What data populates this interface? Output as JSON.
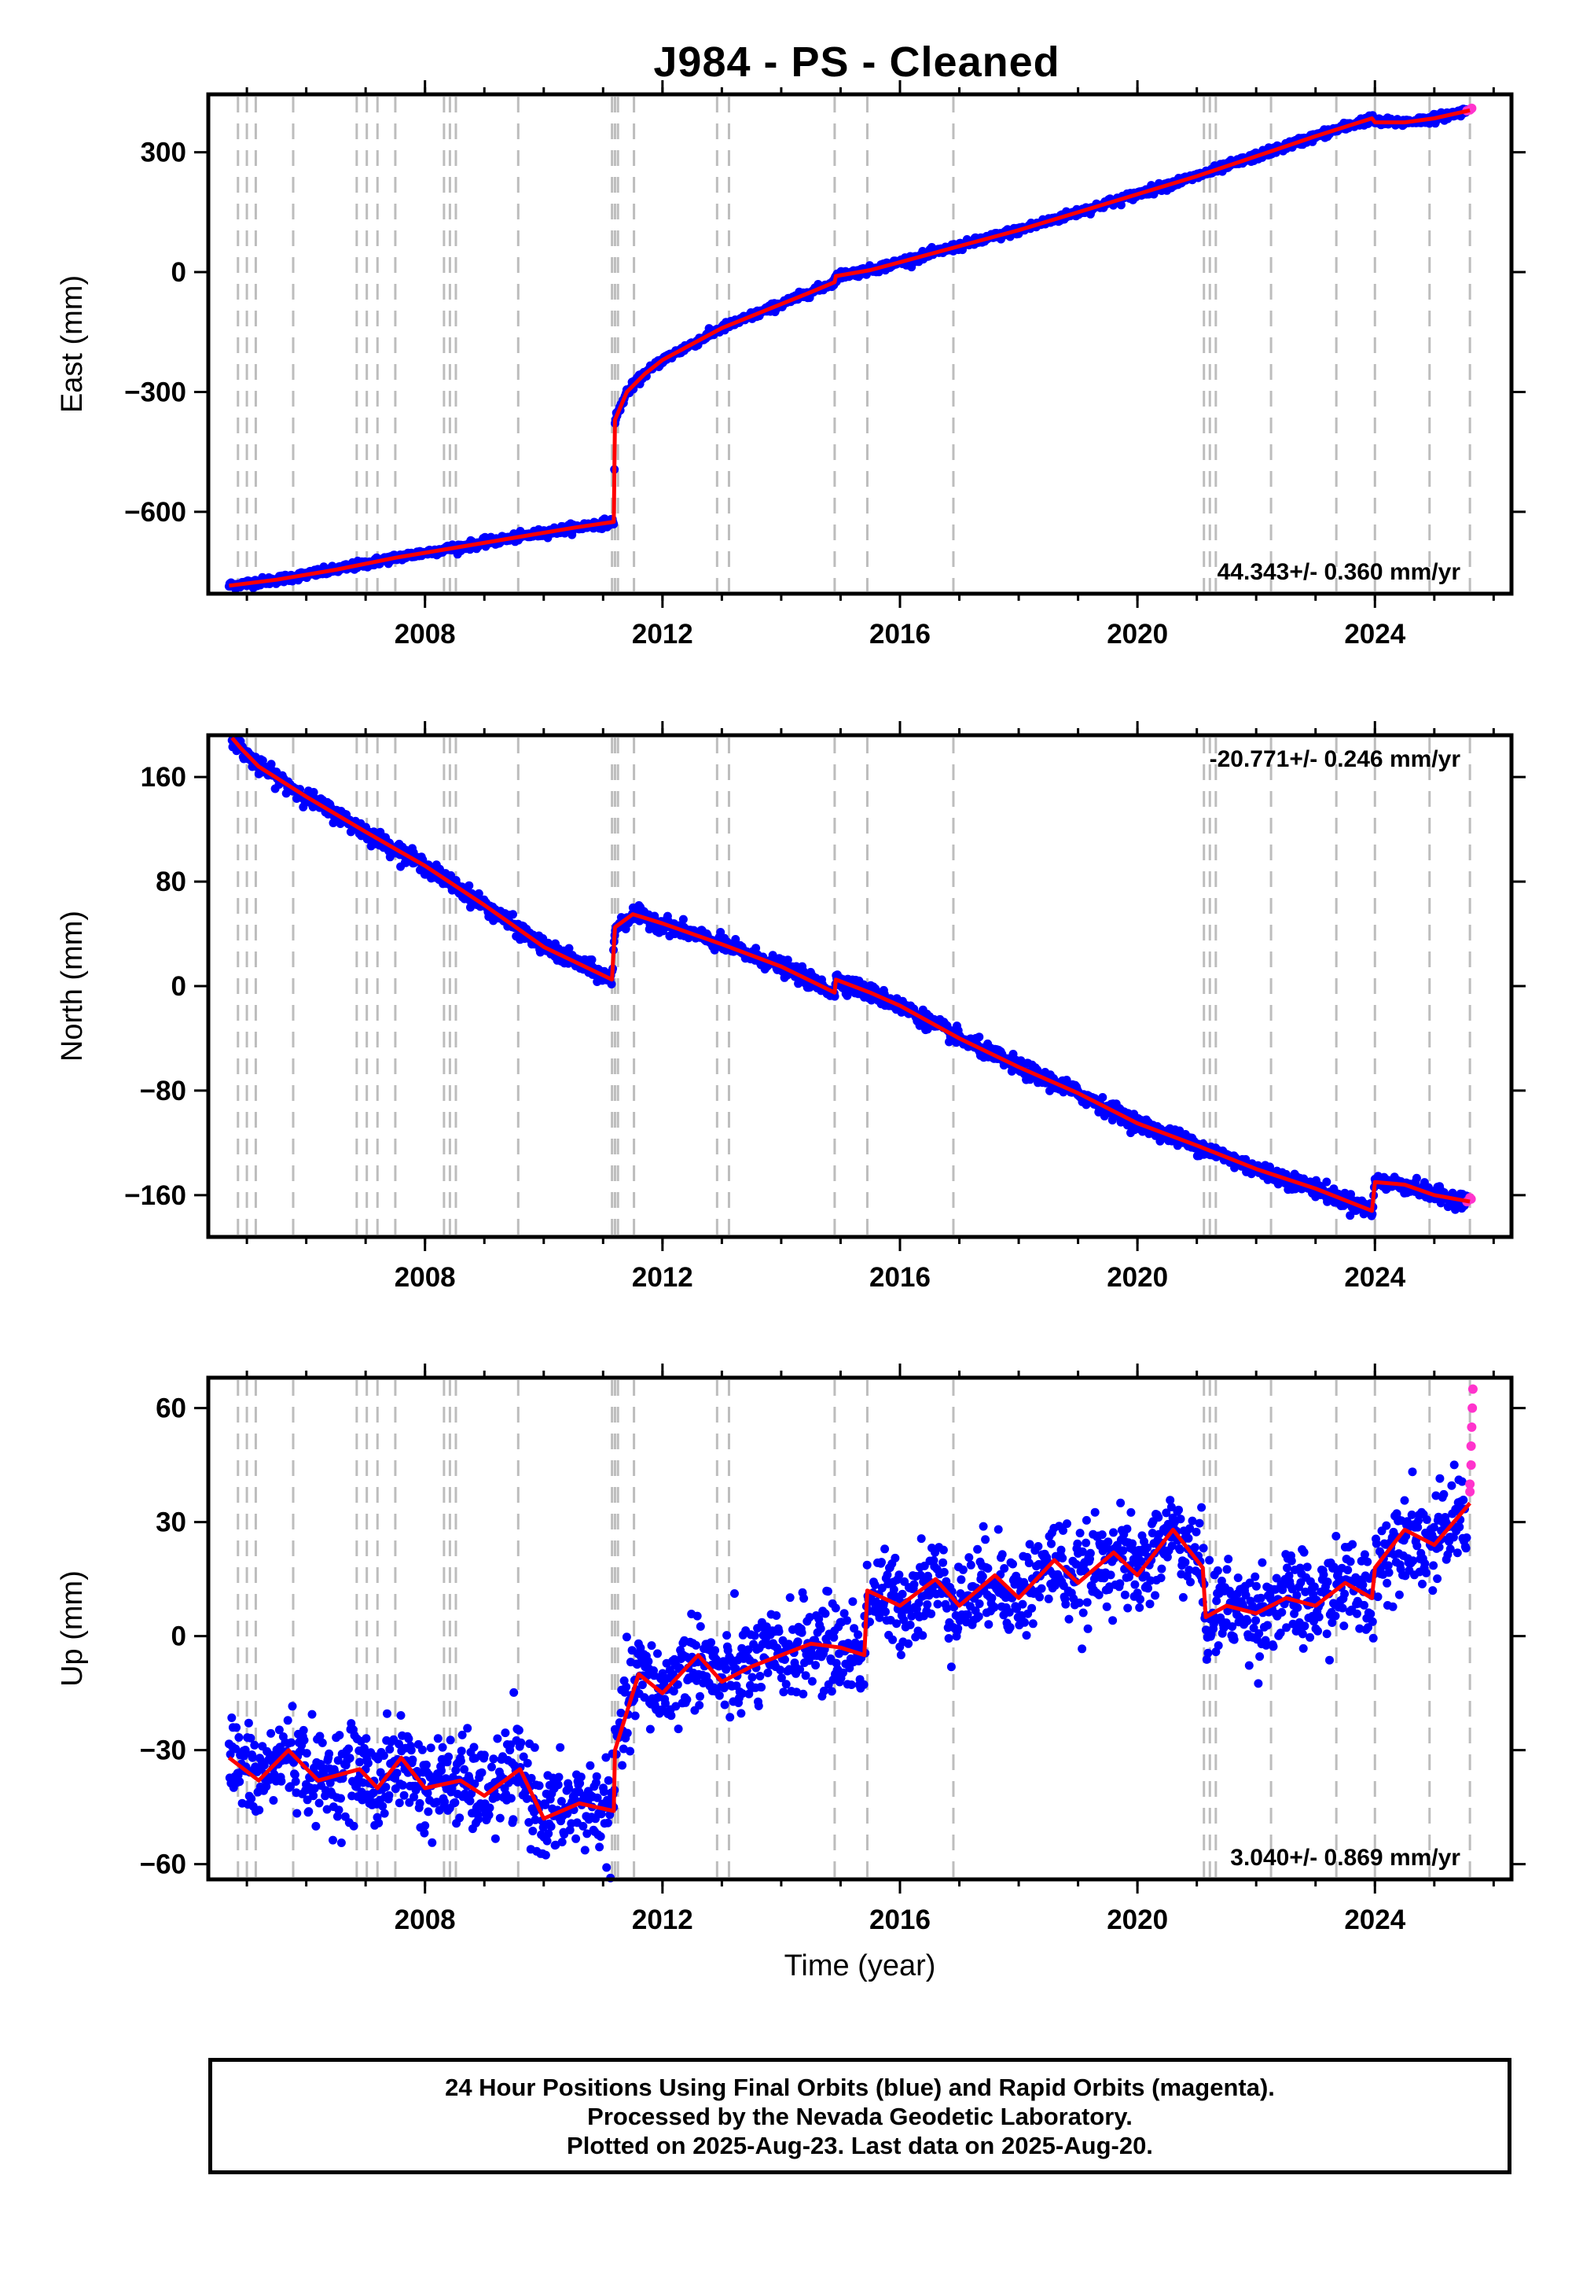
{
  "title": "J984  - PS - Cleaned",
  "colors": {
    "final": "#0000ff",
    "rapid": "#ff33cc",
    "model": "#ff0000",
    "events": "#bdbdbd"
  },
  "footer": {
    "line1": "24 Hour Positions Using Final Orbits (blue) and Rapid Orbits (magenta).",
    "line2": "Processed by the Nevada Geodetic Laboratory.",
    "line3": "Plotted on 2025-Aug-23. Last data on 2025-Aug-20."
  },
  "events": [
    2004.85,
    2005.0,
    2005.15,
    2005.78,
    2006.85,
    2007.02,
    2007.2,
    2007.5,
    2008.32,
    2008.42,
    2008.52,
    2009.57,
    2011.15,
    2011.2,
    2011.25,
    2011.52,
    2012.92,
    2013.12,
    2014.9,
    2015.45,
    2016.9,
    2021.12,
    2021.22,
    2021.32,
    2022.25,
    2023.35,
    2024.0,
    2024.92,
    2025.6
  ],
  "chart_data": [
    {
      "type": "scatter",
      "ylabel": "East (mm)",
      "xlim": [
        2004.35,
        2026.3
      ],
      "ylim": [
        -805,
        445
      ],
      "yticks": [
        -600,
        -300,
        0,
        300
      ],
      "ytick_labels": [
        "−600",
        "−300",
        "0",
        "300"
      ],
      "xticks": [
        2008,
        2012,
        2016,
        2020,
        2024
      ],
      "xtick_labels": [
        "2008",
        "2012",
        "2016",
        "2020",
        "2024"
      ],
      "rate_label": "44.343+/- 0.360 mm/yr",
      "rate_position": "bottom-right",
      "model": [
        [
          2004.7,
          -785
        ],
        [
          2005.5,
          -770
        ],
        [
          2006.5,
          -745
        ],
        [
          2007.5,
          -715
        ],
        [
          2008.5,
          -690
        ],
        [
          2009.5,
          -665
        ],
        [
          2010.5,
          -640
        ],
        [
          2011.18,
          -625
        ],
        [
          2011.2,
          -370
        ],
        [
          2011.4,
          -300
        ],
        [
          2011.7,
          -255
        ],
        [
          2012.0,
          -220
        ],
        [
          2012.5,
          -180
        ],
        [
          2013.0,
          -140
        ],
        [
          2013.5,
          -110
        ],
        [
          2014.0,
          -80
        ],
        [
          2014.5,
          -50
        ],
        [
          2014.9,
          -25
        ],
        [
          2014.92,
          -10
        ],
        [
          2015.5,
          5
        ],
        [
          2016.0,
          25
        ],
        [
          2017.0,
          65
        ],
        [
          2018.0,
          105
        ],
        [
          2019.0,
          150
        ],
        [
          2020.0,
          195
        ],
        [
          2021.0,
          240
        ],
        [
          2022.0,
          290
        ],
        [
          2023.0,
          340
        ],
        [
          2023.95,
          385
        ],
        [
          2024.0,
          375
        ],
        [
          2024.5,
          375
        ],
        [
          2025.0,
          385
        ],
        [
          2025.6,
          405
        ]
      ],
      "noise": 5,
      "rapid": [
        [
          2025.55,
          404
        ],
        [
          2025.6,
          406
        ],
        [
          2025.62,
          409
        ],
        [
          2025.63,
          410
        ]
      ]
    },
    {
      "type": "scatter",
      "ylabel": "North (mm)",
      "xlim": [
        2004.35,
        2026.3
      ],
      "ylim": [
        -192,
        192
      ],
      "yticks": [
        -160,
        -80,
        0,
        80,
        160
      ],
      "ytick_labels": [
        "−160",
        "−80",
        "0",
        "80",
        "160"
      ],
      "xticks": [
        2008,
        2012,
        2016,
        2020,
        2024
      ],
      "xtick_labels": [
        "2008",
        "2012",
        "2016",
        "2020",
        "2024"
      ],
      "rate_label": "-20.771+/- 0.246 mm/yr",
      "rate_position": "top-right",
      "model": [
        [
          2004.75,
          190
        ],
        [
          2004.9,
          182
        ],
        [
          2005.2,
          168
        ],
        [
          2006.0,
          145
        ],
        [
          2007.0,
          118
        ],
        [
          2008.0,
          92
        ],
        [
          2009.0,
          62
        ],
        [
          2010.0,
          30
        ],
        [
          2011.15,
          5
        ],
        [
          2011.2,
          45
        ],
        [
          2011.5,
          55
        ],
        [
          2012.0,
          48
        ],
        [
          2013.0,
          32
        ],
        [
          2014.0,
          15
        ],
        [
          2014.9,
          -5
        ],
        [
          2014.92,
          5
        ],
        [
          2015.5,
          -5
        ],
        [
          2016.0,
          -15
        ],
        [
          2017.0,
          -40
        ],
        [
          2018.0,
          -62
        ],
        [
          2019.0,
          -82
        ],
        [
          2020.0,
          -105
        ],
        [
          2021.0,
          -122
        ],
        [
          2022.0,
          -140
        ],
        [
          2023.0,
          -155
        ],
        [
          2023.95,
          -172
        ],
        [
          2024.0,
          -150
        ],
        [
          2024.5,
          -152
        ],
        [
          2025.0,
          -160
        ],
        [
          2025.6,
          -165
        ]
      ],
      "noise": 3,
      "rapid": [
        [
          2025.55,
          -165
        ],
        [
          2025.6,
          -162
        ],
        [
          2025.62,
          -163
        ]
      ]
    },
    {
      "type": "scatter",
      "ylabel": "Up (mm)",
      "xlabel": "Time (year)",
      "xlim": [
        2004.35,
        2026.3
      ],
      "ylim": [
        -64,
        68
      ],
      "yticks": [
        -60,
        -30,
        0,
        30,
        60
      ],
      "ytick_labels": [
        "−60",
        "−30",
        "0",
        "30",
        "60"
      ],
      "xticks": [
        2008,
        2012,
        2016,
        2020,
        2024
      ],
      "xtick_labels": [
        "2008",
        "2012",
        "2016",
        "2020",
        "2024"
      ],
      "rate_label": "3.040+/- 0.869 mm/yr",
      "rate_position": "bottom-right",
      "model": [
        [
          2004.7,
          -32
        ],
        [
          2005.2,
          -38
        ],
        [
          2005.7,
          -30
        ],
        [
          2006.2,
          -38
        ],
        [
          2006.9,
          -35
        ],
        [
          2007.2,
          -40
        ],
        [
          2007.6,
          -32
        ],
        [
          2008.0,
          -40
        ],
        [
          2008.6,
          -38
        ],
        [
          2009.0,
          -42
        ],
        [
          2009.6,
          -35
        ],
        [
          2010.0,
          -48
        ],
        [
          2010.6,
          -44
        ],
        [
          2011.18,
          -46
        ],
        [
          2011.2,
          -30
        ],
        [
          2011.6,
          -10
        ],
        [
          2012.0,
          -15
        ],
        [
          2012.6,
          -5
        ],
        [
          2013.0,
          -12
        ],
        [
          2013.5,
          -8
        ],
        [
          2014.0,
          -5
        ],
        [
          2014.5,
          -2
        ],
        [
          2015.0,
          -3
        ],
        [
          2015.4,
          -5
        ],
        [
          2015.45,
          12
        ],
        [
          2016.0,
          8
        ],
        [
          2016.6,
          15
        ],
        [
          2017.0,
          8
        ],
        [
          2017.6,
          16
        ],
        [
          2018.0,
          10
        ],
        [
          2018.6,
          20
        ],
        [
          2019.0,
          14
        ],
        [
          2019.6,
          22
        ],
        [
          2020.0,
          16
        ],
        [
          2020.6,
          28
        ],
        [
          2021.0,
          20
        ],
        [
          2021.1,
          18
        ],
        [
          2021.15,
          5
        ],
        [
          2021.5,
          8
        ],
        [
          2022.0,
          6
        ],
        [
          2022.5,
          10
        ],
        [
          2023.0,
          8
        ],
        [
          2023.5,
          14
        ],
        [
          2023.95,
          10
        ],
        [
          2024.0,
          18
        ],
        [
          2024.5,
          28
        ],
        [
          2025.0,
          24
        ],
        [
          2025.6,
          35
        ]
      ],
      "noise": 6,
      "rapid": [
        [
          2025.6,
          40
        ],
        [
          2025.62,
          45
        ],
        [
          2025.62,
          50
        ],
        [
          2025.63,
          55
        ],
        [
          2025.64,
          60
        ],
        [
          2025.65,
          65
        ],
        [
          2025.6,
          38
        ]
      ]
    }
  ]
}
